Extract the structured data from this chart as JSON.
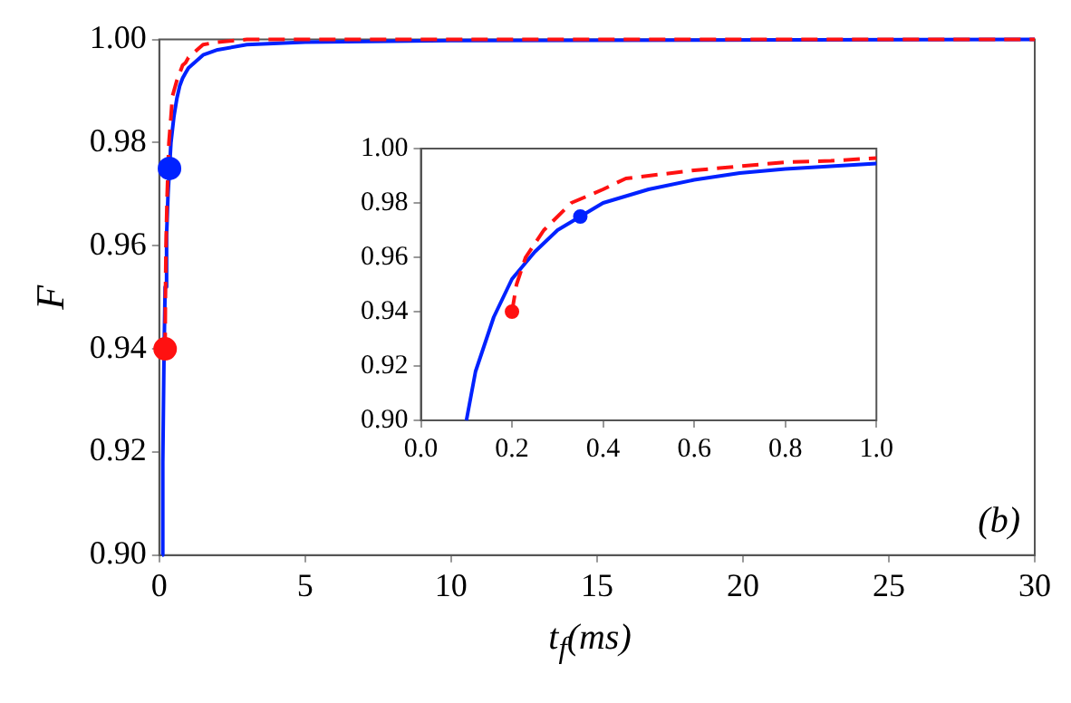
{
  "chart_data": [
    {
      "type": "line",
      "xlabel": "t$_{f}$(ms)",
      "ylabel": "F",
      "annotations": [
        "(b)"
      ],
      "xlim": [
        0,
        30
      ],
      "ylim": [
        0.9,
        1.0
      ],
      "xticks": [
        0,
        5,
        10,
        15,
        20,
        25,
        30
      ],
      "yticks": [
        {
          "value": 0.9,
          "label": "0.90"
        },
        {
          "value": 0.92,
          "label": "0.92"
        },
        {
          "value": 0.94,
          "label": "0.94"
        },
        {
          "value": 0.96,
          "label": "0.96"
        },
        {
          "value": 0.98,
          "label": "0.98"
        },
        {
          "value": 1.0,
          "label": "1.00"
        }
      ],
      "grid": false,
      "legend": false,
      "series": [
        {
          "type": "line",
          "color": "#0022ff",
          "line_style": "solid",
          "marker": "none",
          "x": [
            0.1,
            0.12,
            0.16,
            0.2,
            0.25,
            0.3,
            0.35,
            0.4,
            0.5,
            0.6,
            0.7,
            0.8,
            0.9,
            1.0,
            1.5,
            2,
            3,
            5,
            10,
            30
          ],
          "values": [
            0.9,
            0.918,
            0.938,
            0.952,
            0.962,
            0.97,
            0.975,
            0.98,
            0.985,
            0.9885,
            0.991,
            0.9925,
            0.9935,
            0.9945,
            0.997,
            0.998,
            0.999,
            0.9995,
            0.9998,
            1.0
          ]
        },
        {
          "type": "line",
          "color": "#ff1111",
          "line_style": "dashed",
          "marker": "none",
          "x": [
            0.2,
            0.21,
            0.23,
            0.27,
            0.33,
            0.4,
            0.45,
            0.5,
            0.6,
            0.7,
            0.8,
            0.9,
            1.0,
            1.5,
            2,
            3,
            30
          ],
          "values": [
            0.94,
            0.95,
            0.96,
            0.97,
            0.98,
            0.985,
            0.989,
            0.99,
            0.992,
            0.9935,
            0.995,
            0.9955,
            0.9965,
            0.999,
            0.9995,
            1.0,
            1.0
          ]
        },
        {
          "type": "scatter",
          "color": "#0022ff",
          "marker": "circle",
          "x": [
            0.35
          ],
          "values": [
            0.975
          ]
        },
        {
          "type": "scatter",
          "color": "#ff1111",
          "marker": "circle",
          "x": [
            0.2
          ],
          "values": [
            0.94
          ]
        }
      ]
    },
    {
      "type": "line",
      "xlim": [
        0,
        1
      ],
      "ylim": [
        0.9,
        1.0
      ],
      "xticks": [
        {
          "value": 0,
          "label": "0.0"
        },
        {
          "value": 0.2,
          "label": "0.2"
        },
        {
          "value": 0.4,
          "label": "0.4"
        },
        {
          "value": 0.6,
          "label": "0.6"
        },
        {
          "value": 0.8,
          "label": "0.8"
        },
        {
          "value": 1,
          "label": "1.0"
        }
      ],
      "yticks": [
        {
          "value": 0.9,
          "label": "0.90"
        },
        {
          "value": 0.92,
          "label": "0.92"
        },
        {
          "value": 0.94,
          "label": "0.94"
        },
        {
          "value": 0.96,
          "label": "0.96"
        },
        {
          "value": 0.98,
          "label": "0.98"
        },
        {
          "value": 1.0,
          "label": "1.00"
        }
      ],
      "grid": false,
      "legend": false,
      "series": [
        {
          "type": "line",
          "color": "#0022ff",
          "line_style": "solid",
          "marker": "none",
          "x": [
            0.1,
            0.12,
            0.16,
            0.2,
            0.25,
            0.3,
            0.35,
            0.4,
            0.5,
            0.6,
            0.7,
            0.8,
            0.9,
            1.0
          ],
          "values": [
            0.9,
            0.918,
            0.938,
            0.952,
            0.962,
            0.97,
            0.975,
            0.98,
            0.985,
            0.9885,
            0.991,
            0.9925,
            0.9935,
            0.9945
          ]
        },
        {
          "type": "line",
          "color": "#ff1111",
          "line_style": "dashed",
          "marker": "none",
          "x": [
            0.2,
            0.21,
            0.23,
            0.27,
            0.33,
            0.4,
            0.45,
            0.5,
            0.6,
            0.7,
            0.8,
            0.9,
            1.0
          ],
          "values": [
            0.94,
            0.95,
            0.96,
            0.97,
            0.98,
            0.985,
            0.989,
            0.99,
            0.992,
            0.9935,
            0.995,
            0.9955,
            0.9965
          ]
        },
        {
          "type": "scatter",
          "color": "#0022ff",
          "marker": "circle",
          "x": [
            0.35
          ],
          "values": [
            0.975
          ]
        },
        {
          "type": "scatter",
          "color": "#ff1111",
          "marker": "circle",
          "x": [
            0.2
          ],
          "values": [
            0.94
          ]
        }
      ]
    }
  ]
}
